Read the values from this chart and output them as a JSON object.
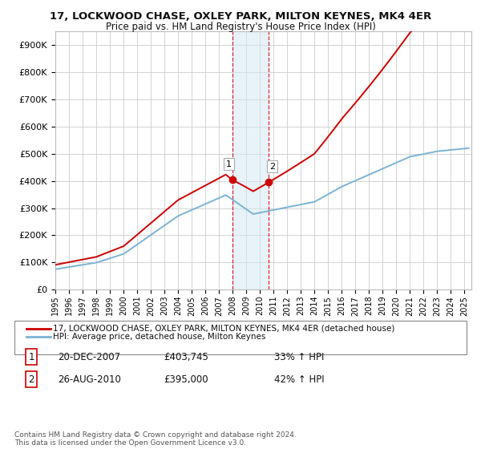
{
  "title": "17, LOCKWOOD CHASE, OXLEY PARK, MILTON KEYNES, MK4 4ER",
  "subtitle": "Price paid vs. HM Land Registry's House Price Index (HPI)",
  "legend_line1": "17, LOCKWOOD CHASE, OXLEY PARK, MILTON KEYNES, MK4 4ER (detached house)",
  "legend_line2": "HPI: Average price, detached house, Milton Keynes",
  "annotation1_date": "20-DEC-2007",
  "annotation1_price": "£403,745",
  "annotation1_hpi": "33% ↑ HPI",
  "annotation2_date": "26-AUG-2010",
  "annotation2_price": "£395,000",
  "annotation2_hpi": "42% ↑ HPI",
  "footnote": "Contains HM Land Registry data © Crown copyright and database right 2024.\nThis data is licensed under the Open Government Licence v3.0.",
  "sale1_x": 2007.96,
  "sale1_y": 403745,
  "sale2_x": 2010.65,
  "sale2_y": 395000,
  "hpi_line_color": "#7ab3d4",
  "price_line_color": "#cc0000",
  "sale_dot_color": "#cc0000",
  "vline_color": "#cc0000",
  "vshade_color": "#d4e8f5",
  "background_color": "#ffffff",
  "grid_color": "#cccccc",
  "ylim": [
    0,
    950000
  ],
  "xlim": [
    1995,
    2025.5
  ],
  "yticks": [
    0,
    100000,
    200000,
    300000,
    400000,
    500000,
    600000,
    700000,
    800000,
    900000
  ],
  "ylabels": [
    "£0",
    "£100K",
    "£200K",
    "£300K",
    "£400K",
    "£500K",
    "£600K",
    "£700K",
    "£800K",
    "£900K"
  ]
}
